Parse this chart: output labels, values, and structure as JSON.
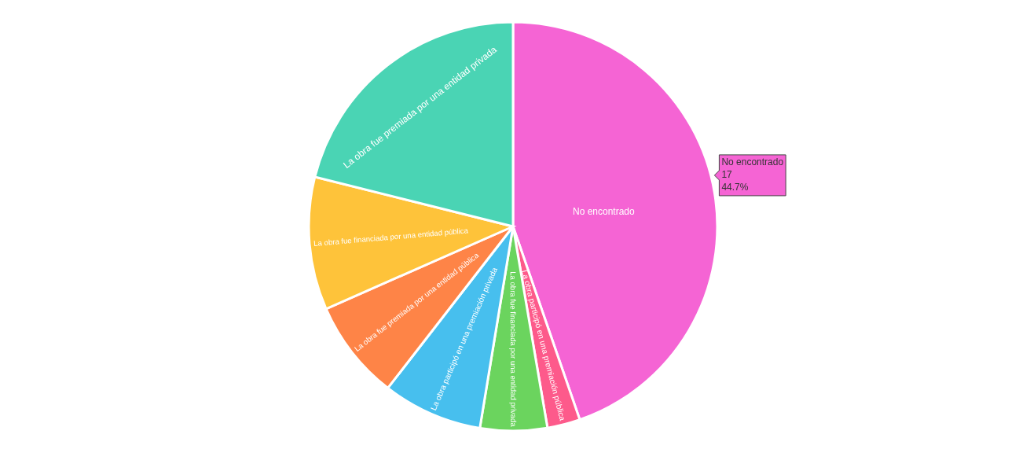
{
  "chart_data": {
    "type": "pie",
    "categories": [
      "No encontrado",
      "La obra participó en una premiación pública",
      "La obra fue financiada por una entidad privada",
      "La obra participó en una premiación privada",
      "La obra fue premiada por una entidad pública",
      "La obra fue financiada por una entidad pública",
      "La obra fue premiada por una entidad privada"
    ],
    "values": [
      44.7,
      2.6,
      5.3,
      7.9,
      7.9,
      10.5,
      21.1
    ],
    "colors": [
      "#f564d4",
      "#fd5a8b",
      "#6bd45e",
      "#47bfee",
      "#fe8447",
      "#fec33a",
      "#4ad4b4"
    ],
    "annotations": [
      {
        "text": "No encontrado\n17\n44.7%",
        "x": "No encontrado"
      }
    ]
  }
}
